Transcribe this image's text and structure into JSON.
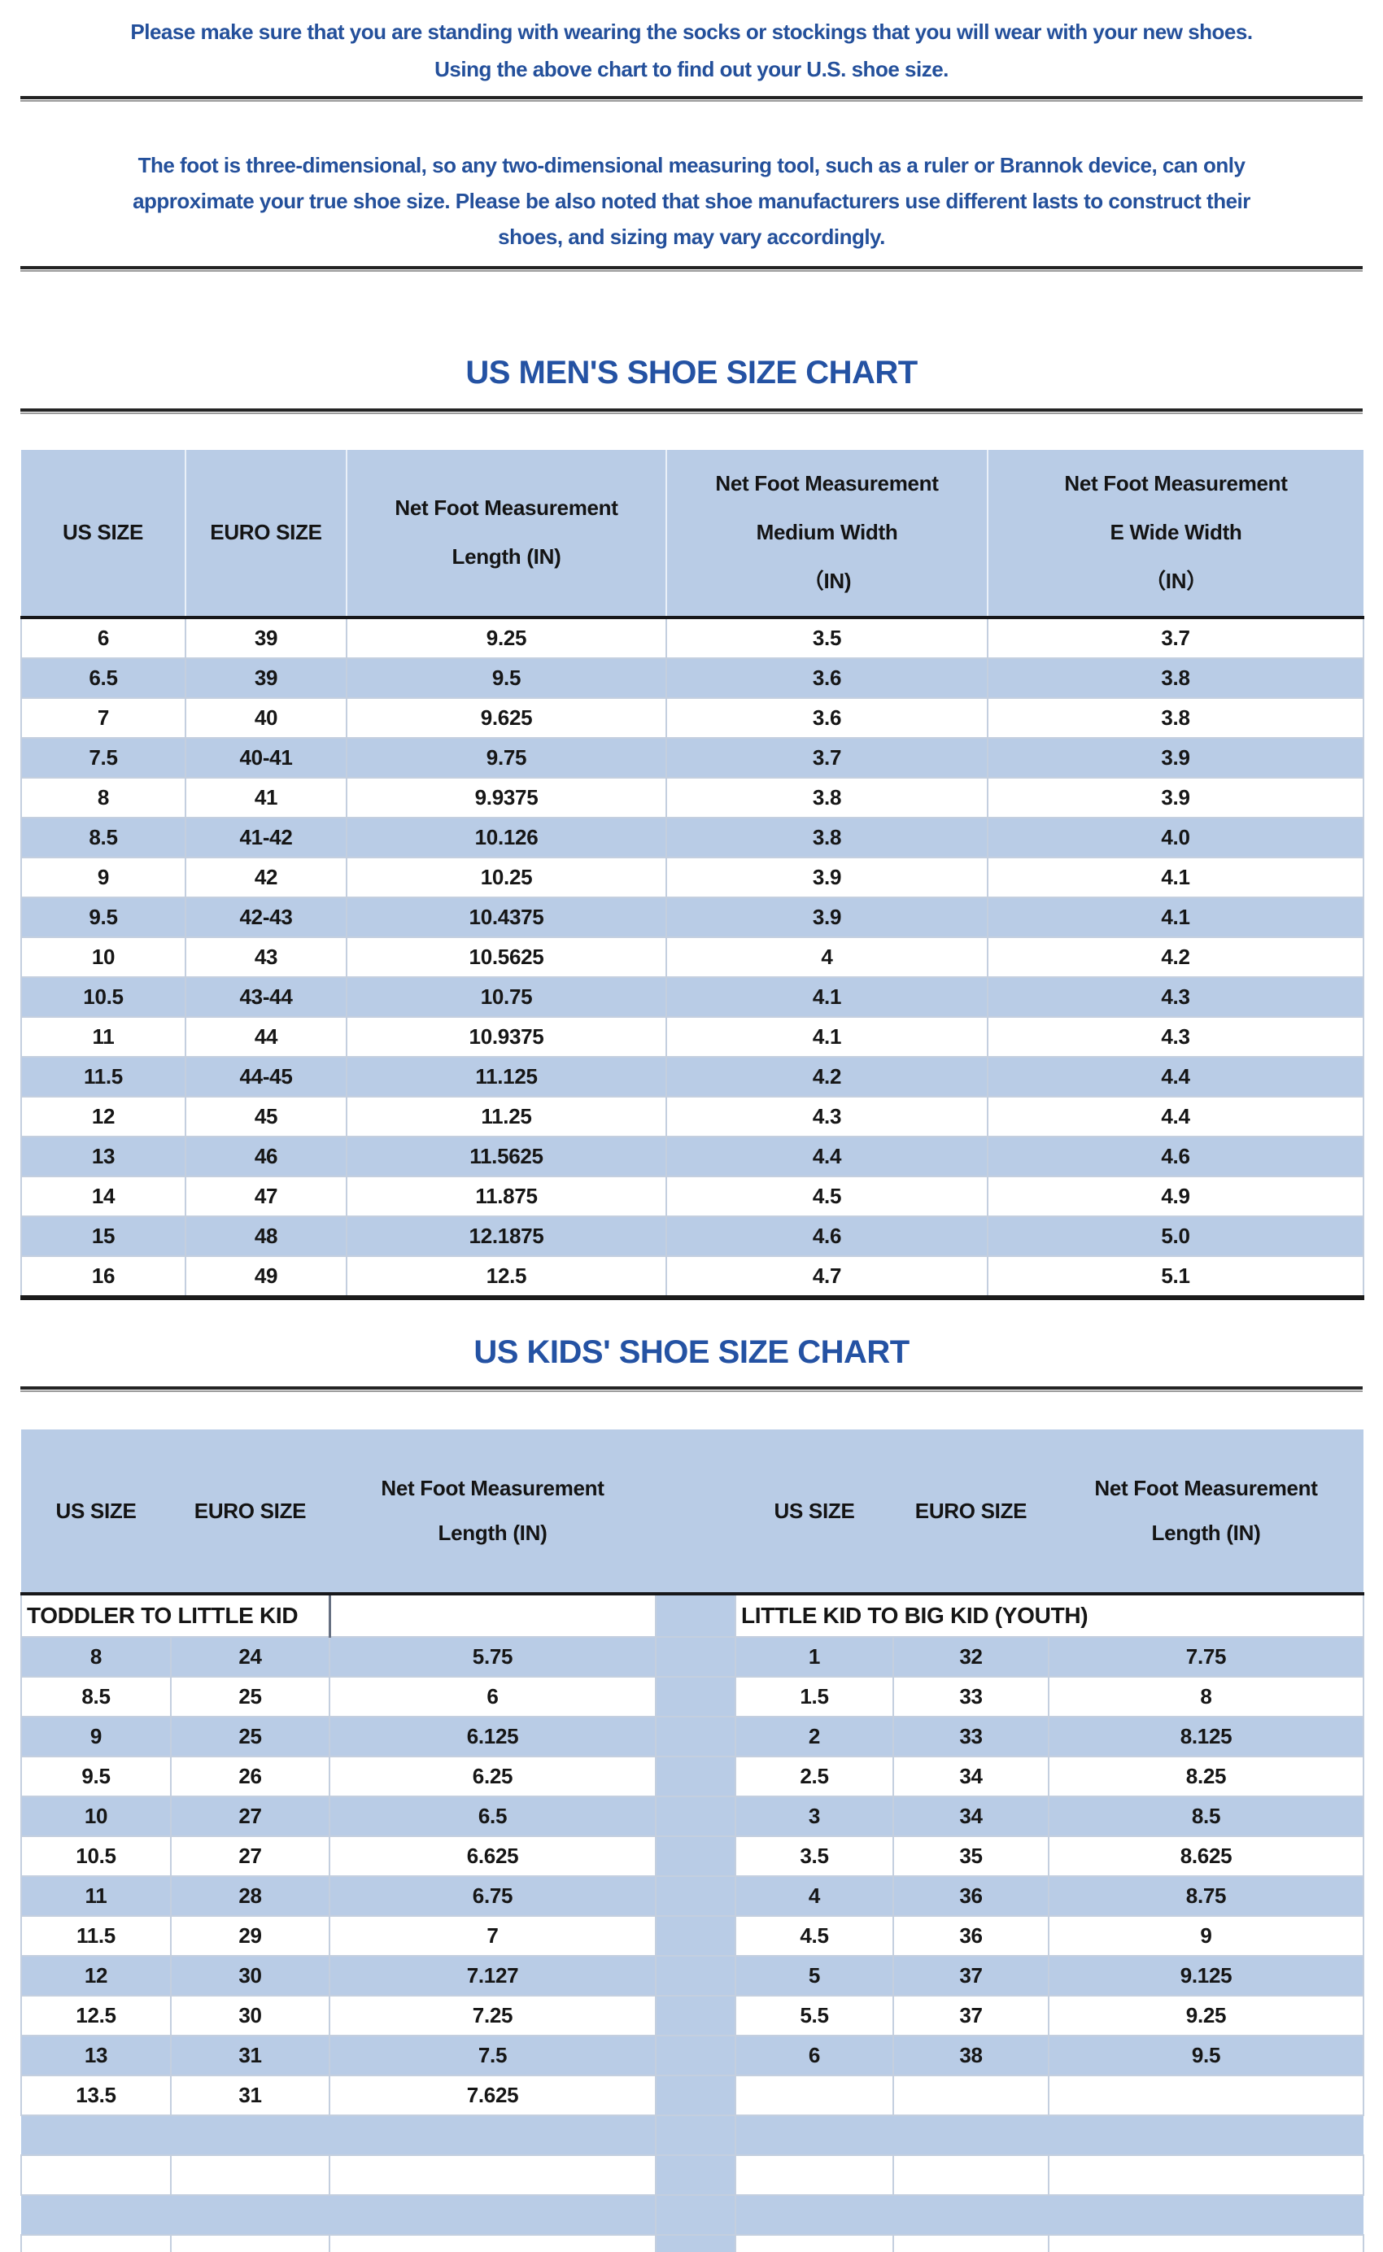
{
  "intro": {
    "line1": "Please make sure that you are standing with wearing the socks or stockings that you will wear with your new shoes.",
    "line2": "Using the above chart to find out your U.S. shoe size."
  },
  "note": {
    "line1": "The foot is three-dimensional, so any two-dimensional measuring tool, such as a ruler or Brannok device, can only",
    "line2": "approximate your true shoe size. Please be also noted that shoe manufacturers use different lasts to construct their",
    "line3": "shoes, and sizing may vary accordingly."
  },
  "mens_chart": {
    "title": "US MEN'S SHOE SIZE CHART",
    "columns": [
      "US SIZE",
      "EURO SIZE",
      "Net Foot Measurement\nLength (IN)",
      "Net Foot Measurement\nMedium Width\n（IN)",
      "Net Foot Measurement\nE Wide Width\n（IN）"
    ],
    "rows": [
      [
        "6",
        "39",
        "9.25",
        "3.5",
        "3.7"
      ],
      [
        "6.5",
        "39",
        "9.5",
        "3.6",
        "3.8"
      ],
      [
        "7",
        "40",
        "9.625",
        "3.6",
        "3.8"
      ],
      [
        "7.5",
        "40-41",
        "9.75",
        "3.7",
        "3.9"
      ],
      [
        "8",
        "41",
        "9.9375",
        "3.8",
        "3.9"
      ],
      [
        "8.5",
        "41-42",
        "10.126",
        "3.8",
        "4.0"
      ],
      [
        "9",
        "42",
        "10.25",
        "3.9",
        "4.1"
      ],
      [
        "9.5",
        "42-43",
        "10.4375",
        "3.9",
        "4.1"
      ],
      [
        "10",
        "43",
        "10.5625",
        "4",
        "4.2"
      ],
      [
        "10.5",
        "43-44",
        "10.75",
        "4.1",
        "4.3"
      ],
      [
        "11",
        "44",
        "10.9375",
        "4.1",
        "4.3"
      ],
      [
        "11.5",
        "44-45",
        "11.125",
        "4.2",
        "4.4"
      ],
      [
        "12",
        "45",
        "11.25",
        "4.3",
        "4.4"
      ],
      [
        "13",
        "46",
        "11.5625",
        "4.4",
        "4.6"
      ],
      [
        "14",
        "47",
        "11.875",
        "4.5",
        "4.9"
      ],
      [
        "15",
        "48",
        "12.1875",
        "4.6",
        "5.0"
      ],
      [
        "16",
        "49",
        "12.5",
        "4.7",
        "5.1"
      ]
    ]
  },
  "kids_chart": {
    "title": "US KIDS' SHOE SIZE CHART",
    "left": {
      "group_label": "TODDLER TO LITTLE KID",
      "columns": [
        "US SIZE",
        "EURO SIZE",
        "Net Foot Measurement\nLength (IN)"
      ],
      "rows": [
        [
          "8",
          "24",
          "5.75"
        ],
        [
          "8.5",
          "25",
          "6"
        ],
        [
          "9",
          "25",
          "6.125"
        ],
        [
          "9.5",
          "26",
          "6.25"
        ],
        [
          "10",
          "27",
          "6.5"
        ],
        [
          "10.5",
          "27",
          "6.625"
        ],
        [
          "11",
          "28",
          "6.75"
        ],
        [
          "11.5",
          "29",
          "7"
        ],
        [
          "12",
          "30",
          "7.127"
        ],
        [
          "12.5",
          "30",
          "7.25"
        ],
        [
          "13",
          "31",
          "7.5"
        ],
        [
          "13.5",
          "31",
          "7.625"
        ],
        [
          "",
          "",
          ""
        ],
        [
          "",
          "",
          ""
        ],
        [
          "",
          "",
          ""
        ],
        [
          "",
          "",
          ""
        ]
      ]
    },
    "right": {
      "group_label": "LITTLE KID TO BIG KID (YOUTH)",
      "columns": [
        "US SIZE",
        "EURO SIZE",
        "Net Foot Measurement\nLength (IN)"
      ],
      "rows": [
        [
          "1",
          "32",
          "7.75"
        ],
        [
          "1.5",
          "33",
          "8"
        ],
        [
          "2",
          "33",
          "8.125"
        ],
        [
          "2.5",
          "34",
          "8.25"
        ],
        [
          "3",
          "34",
          "8.5"
        ],
        [
          "3.5",
          "35",
          "8.625"
        ],
        [
          "4",
          "36",
          "8.75"
        ],
        [
          "4.5",
          "36",
          "9"
        ],
        [
          "5",
          "37",
          "9.125"
        ],
        [
          "5.5",
          "37",
          "9.25"
        ],
        [
          "6",
          "38",
          "9.5"
        ],
        [
          "",
          "",
          ""
        ],
        [
          "",
          "",
          ""
        ],
        [
          "",
          "",
          ""
        ],
        [
          "",
          "",
          ""
        ],
        [
          "",
          "",
          ""
        ]
      ]
    }
  },
  "colors": {
    "body_text_blue": "#24509b",
    "title_blue": "#2452a3",
    "row_blue": "#b9cce6",
    "cell_border": "#c4cfdf",
    "dark_line": "#1b1b1b"
  }
}
